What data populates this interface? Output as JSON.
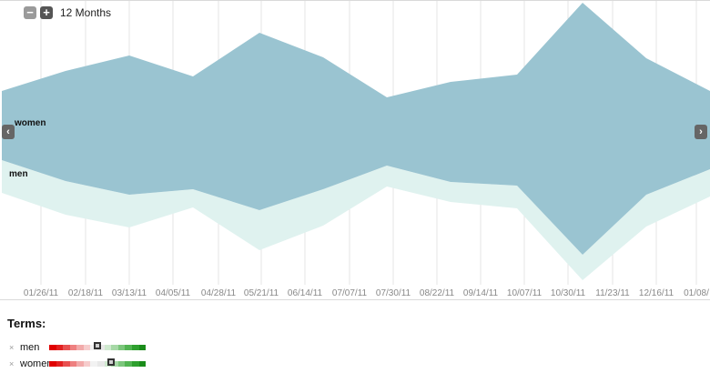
{
  "header": {
    "zoom_out_label": "−",
    "zoom_in_label": "+",
    "period_label": "12 Months"
  },
  "nav": {
    "prev_icon": "chevron-left-icon",
    "next_icon": "chevron-right-icon"
  },
  "colors": {
    "women": "#9ac4d1",
    "men": "#dff2ef",
    "grid": "#e4e4e4"
  },
  "chart_data": {
    "type": "area",
    "stream": true,
    "x": [
      "01/26/11",
      "02/18/11",
      "03/13/11",
      "04/05/11",
      "04/28/11",
      "05/21/11",
      "06/14/11",
      "07/07/11",
      "07/30/11",
      "08/22/11",
      "09/14/11",
      "10/07/11",
      "10/30/11",
      "11/23/11",
      "12/16/11",
      "01/08/"
    ],
    "series": [
      {
        "name": "women",
        "labels": [
          "women"
        ],
        "top": [
          78,
          61,
          49,
          57,
          37,
          34,
          53,
          101,
          82,
          69,
          69,
          78,
          11,
          71,
          109,
          0
        ],
        "bottom": [
          180,
          197,
          197,
          178,
          218,
          203,
          180,
          181,
          197,
          202,
          264,
          211,
          189,
          211,
          160,
          0
        ]
      },
      {
        "name": "men",
        "top": [
          180,
          197,
          197,
          178,
          218,
          203,
          180,
          181,
          197,
          202,
          264,
          211,
          189,
          211,
          160,
          0
        ],
        "bottom": [
          218,
          240,
          236,
          224,
          262,
          242,
          208,
          211,
          222,
          221,
          297,
          228,
          212,
          238,
          200,
          0
        ]
      }
    ],
    "series_labels": [
      "women",
      "men"
    ],
    "grid": true
  },
  "terms": {
    "title": "Terms:",
    "items": [
      {
        "label": "men",
        "remove": "×",
        "level": 0.5
      },
      {
        "label": "women",
        "remove": "×",
        "level": 0.64
      }
    ]
  }
}
